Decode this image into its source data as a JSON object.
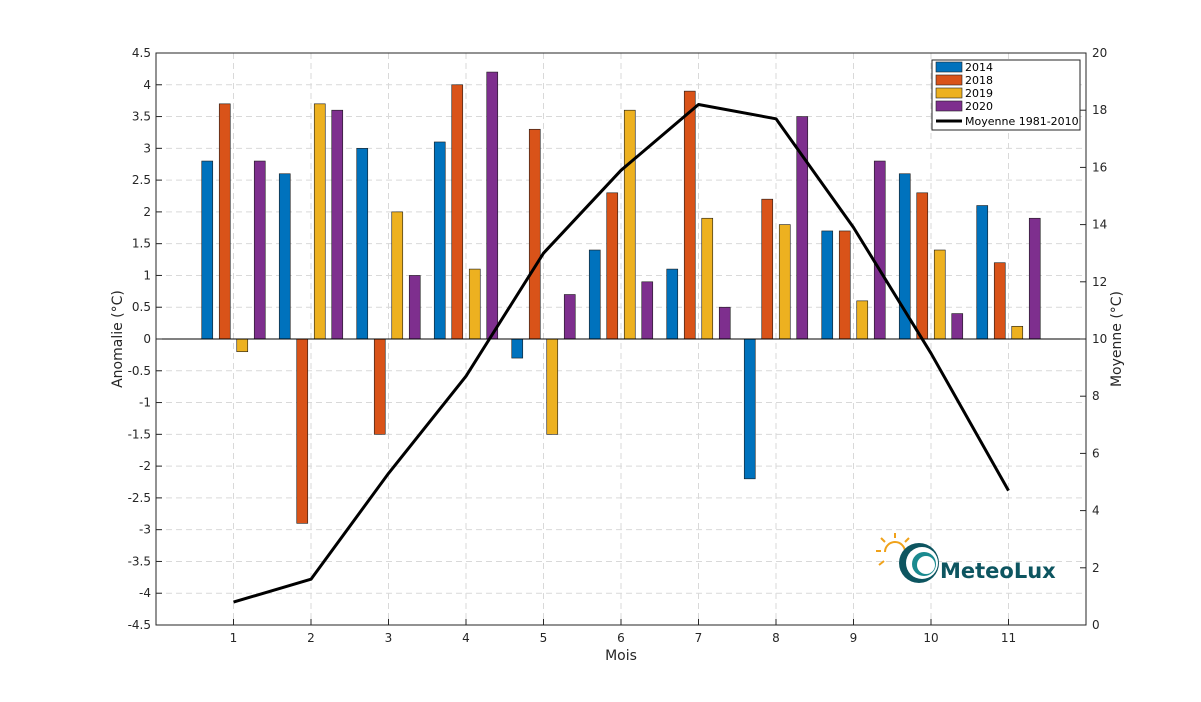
{
  "chart_data": {
    "type": "bar",
    "categories": [
      "1",
      "2",
      "3",
      "4",
      "5",
      "6",
      "7",
      "8",
      "9",
      "10",
      "11"
    ],
    "xlabel": "Mois",
    "ylabel": "Anomalie (°C)",
    "y2label": "Moyenne (°C)",
    "ylim": [
      -4.5,
      4.5
    ],
    "y2lim": [
      0,
      20
    ],
    "yticks": [
      "4.5",
      "4",
      "3.5",
      "3",
      "2.5",
      "2",
      "1.5",
      "1",
      "0.5",
      "0",
      "-0.5",
      "-1",
      "-1.5",
      "-2",
      "-2.5",
      "-3",
      "-3.5",
      "-4",
      "-4.5"
    ],
    "y2ticks": [
      "20",
      "18",
      "16",
      "14",
      "12",
      "10",
      "8",
      "6",
      "4",
      "2",
      "0"
    ],
    "grid": true,
    "legend_position": "top-right",
    "series": [
      {
        "name": "2014",
        "color": "#0072bd",
        "values": [
          2.8,
          2.6,
          3.0,
          3.1,
          -0.3,
          1.4,
          1.1,
          -2.2,
          1.7,
          2.6,
          2.1
        ]
      },
      {
        "name": "2018",
        "color": "#d95319",
        "values": [
          3.7,
          -2.9,
          -1.5,
          4.0,
          3.3,
          2.3,
          3.9,
          2.2,
          1.7,
          2.3,
          1.2
        ]
      },
      {
        "name": "2019",
        "color": "#edb120",
        "values": [
          -0.2,
          3.7,
          2.0,
          1.1,
          -1.5,
          3.6,
          1.9,
          1.8,
          0.6,
          1.4,
          0.2
        ]
      },
      {
        "name": "2020",
        "color": "#7e2f8e",
        "values": [
          2.8,
          3.6,
          1.0,
          4.2,
          0.7,
          0.9,
          0.5,
          3.5,
          2.8,
          0.4,
          1.9
        ]
      }
    ],
    "line": {
      "name": "Moyenne 1981-2010",
      "color": "#000000",
      "axis": "right",
      "values": [
        0.8,
        1.6,
        5.3,
        8.7,
        13.0,
        15.9,
        18.2,
        17.7,
        13.9,
        9.5,
        4.7
      ]
    }
  },
  "logo": {
    "text": "MeteoLux"
  }
}
